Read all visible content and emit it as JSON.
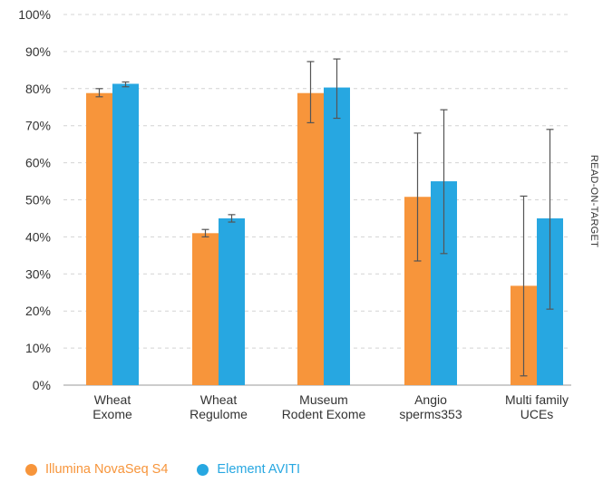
{
  "chart_data": {
    "type": "bar",
    "ylabel": "READ-ON-TARGET",
    "ylim": [
      0,
      100
    ],
    "yticks": [
      "0%",
      "10%",
      "20%",
      "30%",
      "40%",
      "50%",
      "60%",
      "70%",
      "80%",
      "90%",
      "100%"
    ],
    "grid": true,
    "categories": [
      [
        "Wheat",
        "Exome"
      ],
      [
        "Wheat",
        "Regulome"
      ],
      [
        "Museum",
        "Rodent Exome"
      ],
      [
        "Angio",
        "sperms353"
      ],
      [
        "Multi family",
        "UCEs"
      ]
    ],
    "series": [
      {
        "name": "Illumina NovaSeq S4",
        "color": "#F7953B",
        "values": [
          78.8,
          41.0,
          78.8,
          50.8,
          26.8
        ],
        "error_low": [
          77.8,
          40.0,
          70.8,
          33.5,
          2.5
        ],
        "error_high": [
          80.0,
          42.0,
          87.3,
          68.0,
          51.0
        ]
      },
      {
        "name": "Element AVITI",
        "color": "#27A7E1",
        "values": [
          81.3,
          45.0,
          80.3,
          55.0,
          45.0
        ],
        "error_low": [
          80.5,
          44.0,
          72.0,
          35.5,
          20.5
        ],
        "error_high": [
          81.8,
          46.0,
          88.0,
          74.3,
          69.0
        ]
      }
    ],
    "legend_position": "bottom-left"
  }
}
